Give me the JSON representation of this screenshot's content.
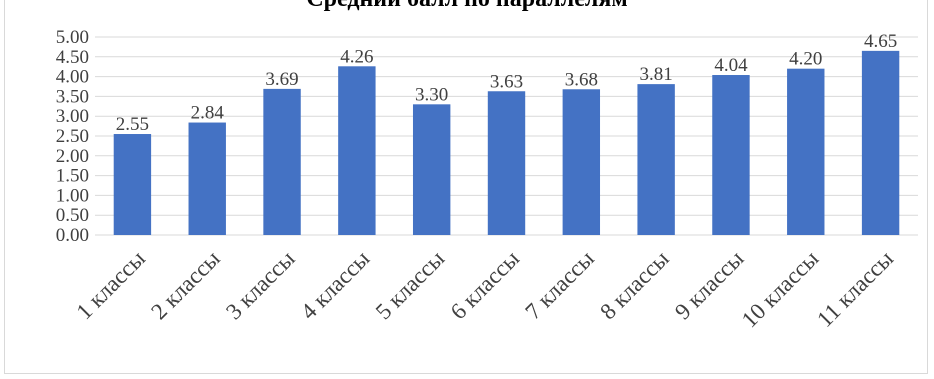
{
  "chart_data": {
    "type": "bar",
    "title": "Средний балл по параллелям",
    "xlabel": "",
    "ylabel": "",
    "categories": [
      "1 классы",
      "2 классы",
      "3 классы",
      "4 классы",
      "5 классы",
      "6 классы",
      "7 классы",
      "8 классы",
      "9 классы",
      "10 классы",
      "11 классы"
    ],
    "values": [
      2.55,
      2.84,
      3.69,
      4.26,
      3.3,
      3.63,
      3.68,
      3.81,
      4.04,
      4.2,
      4.65
    ],
    "value_labels": [
      "2.55",
      "2.84",
      "3.69",
      "4.26",
      "3.30",
      "3.63",
      "3.68",
      "3.81",
      "4.04",
      "4.20",
      "4.65"
    ],
    "ylim": [
      0,
      5
    ],
    "yticks": [
      "0.00",
      "0.50",
      "1.00",
      "1.50",
      "2.00",
      "2.50",
      "3.00",
      "3.50",
      "4.00",
      "4.50",
      "5.00"
    ],
    "grid": true,
    "legend": "none",
    "colors": {
      "bar": "#4472c4",
      "grid": "#d9d9d9",
      "text": "#000000",
      "label": "#404040"
    }
  }
}
